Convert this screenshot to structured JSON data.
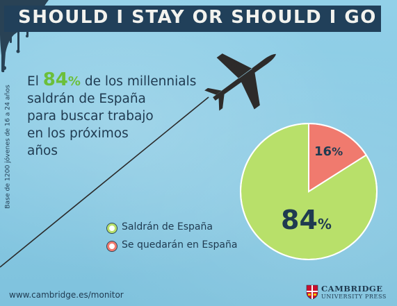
{
  "title": "SHOULD I STAY OR SHOULD I GO",
  "side_note": "Base de 1200 jóvenes de 16 a 24 años",
  "headline": {
    "lead": "El ",
    "percent_number": "84",
    "percent_sign": "%",
    "rest_line1": " de los millennials",
    "line2": "saldrán de España",
    "line3": "para buscar trabajo",
    "line4": "en los próximos",
    "line5": "años"
  },
  "chart_data": {
    "type": "pie",
    "title": "",
    "series": [
      {
        "name": "Saldrán de España",
        "value": 84,
        "label_number": "84",
        "label_sign": "%",
        "color": "#b8e06a"
      },
      {
        "name": "Se quedarán en España",
        "value": 16,
        "label_number": "16",
        "label_sign": "%",
        "color": "#f07a6e"
      }
    ],
    "legend_position": "bottom-left"
  },
  "footer": {
    "url": "www.cambridge.es/monitor",
    "logo_line1": "CAMBRIDGE",
    "logo_line2": "UNIVERSITY PRESS"
  },
  "colors": {
    "title_bar": "#21405a",
    "text_dark": "#1f3a50",
    "accent_green": "#6bbf3a",
    "plane": "#2d2b2a"
  },
  "icons": [
    "airplane-icon",
    "ink-splatter",
    "cambridge-shield-icon"
  ]
}
